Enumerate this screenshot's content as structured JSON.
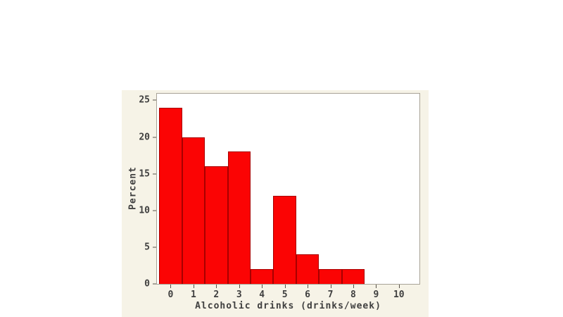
{
  "chart_data": {
    "type": "bar",
    "subtype": "histogram",
    "title": "",
    "xlabel": "Alcoholic drinks (drinks/week)",
    "ylabel": "Percent",
    "categories": [
      0,
      1,
      2,
      3,
      4,
      5,
      6,
      7,
      8,
      9,
      10
    ],
    "values": [
      24,
      20,
      16,
      18,
      2,
      12,
      4,
      2,
      2,
      0,
      0
    ],
    "bin_width": 1,
    "xticks": [
      0,
      1,
      2,
      3,
      4,
      5,
      6,
      7,
      8,
      9,
      10
    ],
    "yticks": [
      0,
      5,
      10,
      15,
      20,
      25
    ],
    "xlim": [
      -0.6,
      10.9
    ],
    "ylim": [
      0,
      25.9
    ],
    "grid": "off",
    "legend": "none",
    "colors": {
      "bar_fill": "#fb0404",
      "bar_border": "#a80000",
      "panel_background": "#f6f3e7",
      "plot_background": "#ffffff",
      "frame": "#a8a296",
      "tick_mark": "#57524a",
      "text": "#3f3f3f",
      "page_background": "#ffffff"
    }
  }
}
